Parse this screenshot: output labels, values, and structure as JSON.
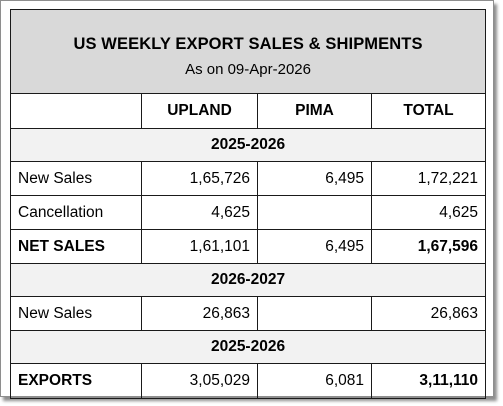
{
  "title": "US WEEKLY EXPORT SALES & SHIPMENTS",
  "subtitle": "As on 09-Apr-2026",
  "columns": [
    "",
    "UPLAND",
    "PIMA",
    "TOTAL"
  ],
  "sections": [
    {
      "heading": "2025-2026",
      "rows": [
        {
          "label": "New Sales",
          "upland": "1,65,726",
          "pima": "6,495",
          "total": "1,72,221"
        },
        {
          "label": "Cancellation",
          "upland": "4,625",
          "pima": "",
          "total": "4,625"
        },
        {
          "label": "NET SALES",
          "upland": "1,61,101",
          "pima": "6,495",
          "total": "1,67,596"
        }
      ]
    },
    {
      "heading": "2026-2027",
      "rows": [
        {
          "label": "New Sales",
          "upland": "26,863",
          "pima": "",
          "total": "26,863"
        }
      ]
    },
    {
      "heading": "2025-2026",
      "rows": [
        {
          "label": "EXPORTS",
          "upland": "3,05,029",
          "pima": "6,081",
          "total": "3,11,110"
        }
      ]
    }
  ]
}
